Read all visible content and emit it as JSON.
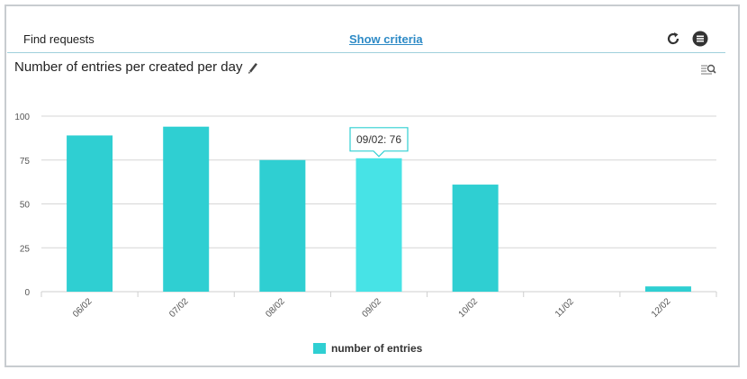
{
  "header": {
    "title": "Find requests",
    "show_criteria_label": "Show criteria",
    "icons": [
      "refresh-icon",
      "menu-icon"
    ]
  },
  "chart": {
    "title": "Number of entries per created per day",
    "title_icon": "pencil-icon",
    "zoom_icon": "zoom-icon",
    "tooltip": "09/02: 76"
  },
  "colors": {
    "bar": "#2fcfd2",
    "bar_highlight": "#47e3e6",
    "link": "#2d8ac6",
    "header_line": "#9fd0dc"
  },
  "chart_data": {
    "type": "bar",
    "categories": [
      "06/02",
      "07/02",
      "08/02",
      "09/02",
      "10/02",
      "11/02",
      "12/02"
    ],
    "series": [
      {
        "name": "number of entries",
        "values": [
          89,
          94,
          75,
          76,
          61,
          0,
          3
        ]
      }
    ],
    "ylim": [
      0,
      100
    ],
    "yticks": [
      0,
      25,
      50,
      75,
      100
    ],
    "grid": true,
    "legend": "bottom-center",
    "highlighted_category": "09/02"
  }
}
